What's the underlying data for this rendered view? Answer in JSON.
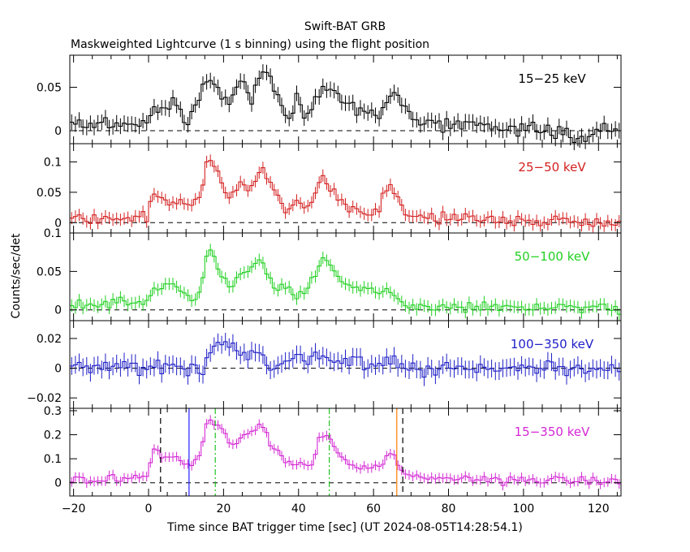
{
  "chart_data": {
    "type": "line",
    "title": "Swift-BAT GRB",
    "subtitle": "Maskweighted Lightcurve (1 s binning) using the flight position",
    "xlabel": "Time since BAT trigger time [sec] (UT 2024-08-05T14:28:54.1)",
    "ylabel": "Counts/sec/det",
    "xlim": [
      -21,
      126
    ],
    "xticks": [
      -20,
      0,
      20,
      40,
      60,
      80,
      100,
      120
    ],
    "xtick_labels": [
      "−20",
      "0",
      "20",
      "40",
      "60",
      "80",
      "100",
      "120"
    ],
    "panels": [
      {
        "band": "15−25 keV",
        "color": "#000000",
        "ylim": [
          -0.015,
          0.087
        ],
        "yticks": [
          0,
          0.05
        ],
        "ytick_labels": [
          "0",
          "0.05"
        ],
        "err": 0.009,
        "profile": [
          {
            "t": -21,
            "v": 0.005
          },
          {
            "t": 0,
            "v": 0.008
          },
          {
            "t": 1,
            "v": 0.035
          },
          {
            "t": 4,
            "v": 0.025
          },
          {
            "t": 7,
            "v": 0.032
          },
          {
            "t": 10,
            "v": 0.008
          },
          {
            "t": 13,
            "v": 0.035
          },
          {
            "t": 17,
            "v": 0.068
          },
          {
            "t": 21,
            "v": 0.025
          },
          {
            "t": 25,
            "v": 0.065
          },
          {
            "t": 27,
            "v": 0.03
          },
          {
            "t": 30,
            "v": 0.072
          },
          {
            "t": 34,
            "v": 0.05
          },
          {
            "t": 37,
            "v": 0.008
          },
          {
            "t": 40,
            "v": 0.045
          },
          {
            "t": 42,
            "v": 0.01
          },
          {
            "t": 44,
            "v": 0.035
          },
          {
            "t": 48,
            "v": 0.055
          },
          {
            "t": 51,
            "v": 0.035
          },
          {
            "t": 55,
            "v": 0.025
          },
          {
            "t": 58,
            "v": 0.025
          },
          {
            "t": 62,
            "v": 0.015
          },
          {
            "t": 65,
            "v": 0.052
          },
          {
            "t": 68,
            "v": 0.03
          },
          {
            "t": 70,
            "v": 0.01
          },
          {
            "t": 100,
            "v": 0.004
          },
          {
            "t": 115,
            "v": -0.006
          },
          {
            "t": 126,
            "v": 0.004
          }
        ]
      },
      {
        "band": "25−50 keV",
        "color": "#d42020",
        "ylim": [
          -0.017,
          0.13
        ],
        "yticks": [
          0,
          0.05,
          0.1
        ],
        "ytick_labels": [
          "0",
          "0.05",
          "0.1"
        ],
        "err": 0.01,
        "profile": [
          {
            "t": -21,
            "v": 0.008
          },
          {
            "t": -10,
            "v": 0.006
          },
          {
            "t": 0,
            "v": 0.01
          },
          {
            "t": 1,
            "v": 0.05
          },
          {
            "t": 5,
            "v": 0.035
          },
          {
            "t": 8,
            "v": 0.03
          },
          {
            "t": 11,
            "v": 0.025
          },
          {
            "t": 14,
            "v": 0.045
          },
          {
            "t": 16,
            "v": 0.11
          },
          {
            "t": 18,
            "v": 0.085
          },
          {
            "t": 21,
            "v": 0.035
          },
          {
            "t": 25,
            "v": 0.075
          },
          {
            "t": 27,
            "v": 0.05
          },
          {
            "t": 30,
            "v": 0.09
          },
          {
            "t": 33,
            "v": 0.06
          },
          {
            "t": 37,
            "v": 0.015
          },
          {
            "t": 40,
            "v": 0.03
          },
          {
            "t": 43,
            "v": 0.025
          },
          {
            "t": 46,
            "v": 0.075
          },
          {
            "t": 49,
            "v": 0.055
          },
          {
            "t": 53,
            "v": 0.03
          },
          {
            "t": 58,
            "v": 0.015
          },
          {
            "t": 61,
            "v": 0.02
          },
          {
            "t": 64,
            "v": 0.06
          },
          {
            "t": 67,
            "v": 0.035
          },
          {
            "t": 69,
            "v": 0.01
          },
          {
            "t": 100,
            "v": 0.004
          },
          {
            "t": 126,
            "v": 0.0
          }
        ]
      },
      {
        "band": "50−100 keV",
        "color": "#22d022",
        "ylim": [
          -0.014,
          0.1
        ],
        "yticks": [
          0,
          0.05,
          0.1
        ],
        "ytick_labels": [
          "0",
          "0.05",
          "0.1"
        ],
        "err": 0.008,
        "profile": [
          {
            "t": -21,
            "v": 0.008
          },
          {
            "t": 0,
            "v": 0.01
          },
          {
            "t": 1,
            "v": 0.03
          },
          {
            "t": 5,
            "v": 0.035
          },
          {
            "t": 8,
            "v": 0.025
          },
          {
            "t": 12,
            "v": 0.01
          },
          {
            "t": 14,
            "v": 0.03
          },
          {
            "t": 16,
            "v": 0.085
          },
          {
            "t": 19,
            "v": 0.05
          },
          {
            "t": 22,
            "v": 0.03
          },
          {
            "t": 26,
            "v": 0.055
          },
          {
            "t": 30,
            "v": 0.065
          },
          {
            "t": 33,
            "v": 0.03
          },
          {
            "t": 37,
            "v": 0.03
          },
          {
            "t": 40,
            "v": 0.015
          },
          {
            "t": 43,
            "v": 0.03
          },
          {
            "t": 46,
            "v": 0.065
          },
          {
            "t": 49,
            "v": 0.05
          },
          {
            "t": 53,
            "v": 0.03
          },
          {
            "t": 58,
            "v": 0.025
          },
          {
            "t": 62,
            "v": 0.02
          },
          {
            "t": 64,
            "v": 0.03
          },
          {
            "t": 67,
            "v": 0.012
          },
          {
            "t": 70,
            "v": 0.004
          },
          {
            "t": 126,
            "v": 0.002
          }
        ]
      },
      {
        "band": "100−350 keV",
        "color": "#2020c8",
        "ylim": [
          -0.027,
          0.032
        ],
        "yticks": [
          -0.02,
          0,
          0.02
        ],
        "ytick_labels": [
          "−0.02",
          "0",
          "0.02"
        ],
        "err": 0.006,
        "profile": [
          {
            "t": -21,
            "v": 0.0
          },
          {
            "t": 15,
            "v": 0.0
          },
          {
            "t": 16,
            "v": 0.014
          },
          {
            "t": 20,
            "v": 0.02
          },
          {
            "t": 24,
            "v": 0.01
          },
          {
            "t": 30,
            "v": 0.01
          },
          {
            "t": 33,
            "v": -0.003
          },
          {
            "t": 40,
            "v": 0.008
          },
          {
            "t": 47,
            "v": 0.01
          },
          {
            "t": 50,
            "v": 0.005
          },
          {
            "t": 58,
            "v": 0.004
          },
          {
            "t": 65,
            "v": 0.003
          },
          {
            "t": 70,
            "v": 0.0
          },
          {
            "t": 126,
            "v": 0.0
          }
        ]
      },
      {
        "band": "15−350 keV",
        "color": "#d428d4",
        "ylim": [
          -0.055,
          0.31
        ],
        "yticks": [
          0,
          0.1,
          0.2,
          0.3
        ],
        "ytick_labels": [
          "0",
          "0.1",
          "0.2",
          "0.3"
        ],
        "err": 0.02,
        "profile": [
          {
            "t": -21,
            "v": 0.02
          },
          {
            "t": -14,
            "v": 0.01
          },
          {
            "t": -10,
            "v": 0.025
          },
          {
            "t": 0,
            "v": 0.025
          },
          {
            "t": 1,
            "v": 0.14
          },
          {
            "t": 4,
            "v": 0.11
          },
          {
            "t": 6,
            "v": 0.11
          },
          {
            "t": 9,
            "v": 0.08
          },
          {
            "t": 12,
            "v": 0.06
          },
          {
            "t": 14,
            "v": 0.13
          },
          {
            "t": 16,
            "v": 0.27
          },
          {
            "t": 19,
            "v": 0.23
          },
          {
            "t": 22,
            "v": 0.15
          },
          {
            "t": 26,
            "v": 0.2
          },
          {
            "t": 30,
            "v": 0.25
          },
          {
            "t": 33,
            "v": 0.16
          },
          {
            "t": 37,
            "v": 0.08
          },
          {
            "t": 40,
            "v": 0.09
          },
          {
            "t": 43,
            "v": 0.06
          },
          {
            "t": 46,
            "v": 0.2
          },
          {
            "t": 49,
            "v": 0.16
          },
          {
            "t": 53,
            "v": 0.08
          },
          {
            "t": 58,
            "v": 0.06
          },
          {
            "t": 62,
            "v": 0.06
          },
          {
            "t": 65,
            "v": 0.13
          },
          {
            "t": 67,
            "v": 0.06
          },
          {
            "t": 70,
            "v": 0.02
          },
          {
            "t": 110,
            "v": 0.01
          },
          {
            "t": 126,
            "v": 0.005
          }
        ],
        "markers": [
          {
            "t": 3.2,
            "color": "#000000",
            "style": "dashed"
          },
          {
            "t": 67.8,
            "color": "#000000",
            "style": "dashed"
          },
          {
            "t": 10.8,
            "color": "#2020ff",
            "style": "solid"
          },
          {
            "t": 66.2,
            "color": "#ff7f00",
            "style": "solid"
          },
          {
            "t": 17.8,
            "color": "#22c022",
            "style": "dashdot"
          },
          {
            "t": 48.2,
            "color": "#22c022",
            "style": "dashdot"
          }
        ]
      }
    ]
  }
}
